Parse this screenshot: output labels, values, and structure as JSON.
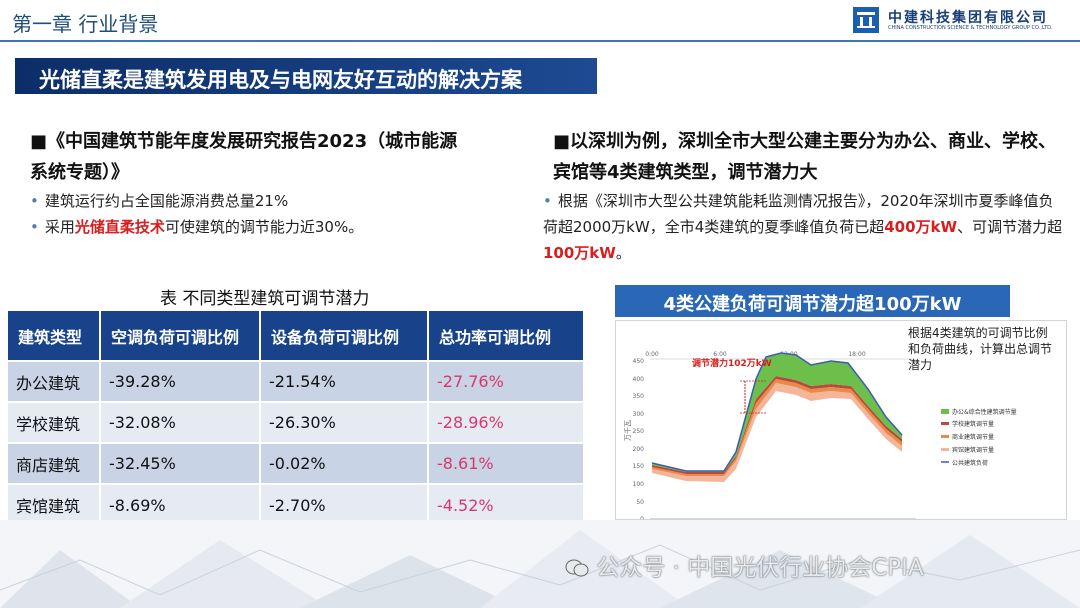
{
  "header": {
    "chapter": "第一章  行业背景",
    "company_cn": "中建科技集团有限公司",
    "company_en": "CHINA CONSTRUCTION SCIENCE & TECHNOLOGY GROUP CO.,LTD."
  },
  "banner": "光储直柔是建筑发用电及与电网友好互动的解决方案",
  "left": {
    "heading": "■《中国建筑节能年度发展研究报告2023（城市能源系统专题）》",
    "bullet1": "建筑运行约占全国能源消费总量21%",
    "bullet2_pre": "采用",
    "bullet2_red": "光储直柔技术",
    "bullet2_post": "可使建筑的调节能力近30%。"
  },
  "right": {
    "heading": "■以深圳为例，深圳全市大型公建主要分为办公、商业、学校、宾馆等4类建筑类型，调节潜力大",
    "bullet_a": "根据《深圳市大型公共建筑能耗监测情况报告》，2020年深圳市夏季峰值负荷超2000万kW，全市4类建筑的夏季峰值负荷已超",
    "bullet_b_red": "400万kW",
    "bullet_b_mid": "、可调节潜力超",
    "bullet_b_red2": "100万kW",
    "bullet_b_end": "。"
  },
  "table": {
    "title": "表 不同类型建筑可调节潜力",
    "headers": [
      "建筑类型",
      "空调负荷可调比例",
      "设备负荷可调比例",
      "总功率可调比例"
    ],
    "rows": [
      [
        "办公建筑",
        "-39.28%",
        "-21.54%",
        "-27.76%"
      ],
      [
        "学校建筑",
        "-32.08%",
        "-26.30%",
        "-28.96%"
      ],
      [
        "商店建筑",
        "-32.45%",
        "-0.02%",
        "-8.61%"
      ],
      [
        "宾馆建筑",
        "-8.69%",
        "-2.70%",
        "-4.52%"
      ]
    ]
  },
  "chart": {
    "title": "4类公建负荷可调节潜力超100万kW",
    "note": "根据4类建筑的可调节比例和负荷曲线，计算出总调节潜力",
    "potential_label": "调节潜力102万kW",
    "ylabel": "万千瓦",
    "y_ticks": [
      "0",
      "50",
      "100",
      "150",
      "200",
      "250",
      "300",
      "350",
      "400",
      "450"
    ],
    "x_ticks": [
      "0:00",
      "6:00",
      "12:00",
      "18:00"
    ],
    "legend": [
      "办公&综合性建筑调节量",
      "学校建筑调节量",
      "商业建筑调节量",
      "宾馆建筑调节量",
      "公共建筑负荷"
    ],
    "legend_colors": [
      "#6dbf4b",
      "#c0392b",
      "#e67e22",
      "#f0a07a",
      "#3b5bb5"
    ]
  },
  "watermark": "公众号 · 中国光伏行业协会CPIA"
}
